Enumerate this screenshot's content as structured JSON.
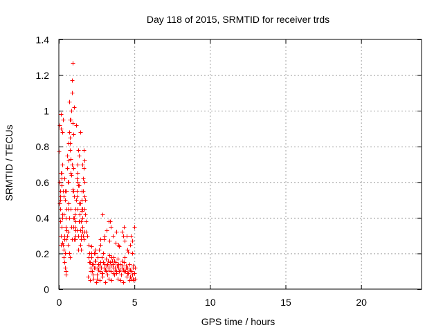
{
  "chart_data": {
    "type": "scatter",
    "title": "Day 118 of 2015, SRMTID for receiver trds",
    "xlabel": "GPS time / hours",
    "ylabel": "SRMTID / TECUs",
    "xlim": [
      0,
      24
    ],
    "ylim": [
      0,
      1.4
    ],
    "xticks": [
      0,
      5,
      10,
      15,
      20
    ],
    "yticks": [
      0,
      0.2,
      0.4,
      0.6,
      0.8,
      1,
      1.2,
      1.4
    ],
    "xtick_labels": [
      "0",
      "5",
      "10",
      "15",
      "20"
    ],
    "ytick_labels": [
      "0",
      "0.2",
      "0.4",
      "0.6",
      "0.8",
      "1",
      "1.2",
      "1.4"
    ],
    "grid": true,
    "marker": "+",
    "color": "#ff0000",
    "series": [
      {
        "name": "SRMTID",
        "x": [
          0.02,
          0.05,
          0.08,
          0.1,
          0.12,
          0.15,
          0.18,
          0.2,
          0.22,
          0.25,
          0.28,
          0.3,
          0.32,
          0.35,
          0.38,
          0.4,
          0.42,
          0.45,
          0.48,
          0.5,
          0.52,
          0.55,
          0.58,
          0.6,
          0.62,
          0.65,
          0.68,
          0.7,
          0.72,
          0.75,
          0.78,
          0.8,
          0.82,
          0.85,
          0.88,
          0.9,
          0.92,
          0.95,
          0.98,
          1.0,
          1.02,
          1.05,
          1.08,
          1.1,
          1.12,
          1.15,
          1.18,
          1.2,
          1.22,
          1.25,
          1.28,
          1.3,
          1.32,
          1.35,
          1.38,
          1.4,
          1.42,
          1.45,
          1.48,
          1.5,
          1.52,
          1.55,
          1.58,
          1.6,
          1.62,
          1.65,
          1.68,
          1.7,
          1.72,
          1.75,
          1.78,
          1.8,
          0.05,
          0.1,
          0.15,
          0.2,
          0.25,
          0.3,
          0.35,
          0.4,
          0.45,
          0.5,
          0.55,
          0.6,
          0.65,
          0.7,
          0.75,
          0.8,
          0.85,
          0.9,
          0.95,
          1.0,
          1.05,
          1.1,
          1.15,
          1.2,
          1.25,
          1.3,
          1.35,
          1.4,
          1.45,
          1.5,
          1.55,
          1.6,
          1.65,
          1.7,
          0.08,
          0.18,
          0.28,
          0.38,
          0.48,
          0.58,
          0.68,
          0.78,
          0.88,
          0.98,
          1.08,
          1.18,
          1.28,
          1.38,
          1.48,
          1.58,
          1.68,
          0.12,
          0.24,
          0.36,
          0.48,
          0.6,
          0.72,
          0.84,
          0.96,
          1.08,
          1.2,
          1.32,
          1.44,
          1.56,
          1.68,
          1.9,
          1.95,
          2.0,
          2.05,
          2.1,
          2.15,
          2.2,
          2.25,
          2.3,
          2.35,
          2.4,
          2.45,
          2.5,
          2.55,
          2.6,
          2.65,
          2.7,
          2.75,
          2.8,
          2.85,
          2.9,
          2.95,
          3.0,
          3.05,
          3.1,
          3.15,
          3.2,
          3.25,
          3.3,
          3.35,
          3.4,
          3.45,
          3.5,
          3.55,
          3.6,
          3.65,
          3.7,
          3.75,
          3.8,
          3.85,
          3.9,
          3.95,
          4.0,
          4.05,
          4.1,
          4.15,
          4.2,
          4.25,
          4.3,
          4.35,
          4.4,
          4.45,
          4.5,
          4.55,
          4.6,
          4.65,
          4.7,
          4.75,
          4.8,
          4.85,
          4.9,
          4.95,
          5.0,
          5.05,
          1.92,
          2.02,
          2.12,
          2.22,
          2.32,
          2.42,
          2.52,
          2.62,
          2.72,
          2.82,
          2.92,
          3.02,
          3.12,
          3.22,
          3.32,
          3.42,
          3.52,
          3.62,
          3.72,
          3.82,
          3.92,
          4.02,
          4.12,
          4.22,
          4.32,
          4.42,
          4.52,
          4.62,
          4.72,
          4.82,
          4.92,
          5.02,
          1.97,
          2.17,
          2.37,
          2.57,
          2.77,
          2.97,
          3.17,
          3.37,
          3.57,
          3.77,
          3.97,
          4.17,
          4.37,
          4.57,
          4.77,
          4.97,
          2.08,
          2.28,
          2.48,
          2.68,
          2.88,
          3.08,
          3.28,
          3.48,
          3.68,
          3.88,
          4.08,
          4.28,
          4.48,
          4.68,
          4.88,
          2.14,
          2.44,
          2.74,
          3.04,
          3.34,
          3.64,
          3.94,
          4.24,
          4.54,
          4.84,
          2.9,
          3.3,
          3.45,
          3.8,
          4.3,
          4.5,
          4.7,
          4.85,
          0.03,
          0.07,
          0.13,
          0.17,
          0.23,
          0.27,
          0.33,
          0.43,
          0.53,
          0.63,
          0.73,
          0.83,
          0.93,
          1.03,
          1.13,
          1.23,
          1.33,
          1.43,
          1.53,
          1.63
        ],
        "y": [
          0.77,
          0.6,
          0.45,
          0.52,
          0.98,
          0.9,
          0.35,
          0.58,
          0.26,
          0.7,
          0.55,
          0.42,
          0.18,
          0.3,
          0.62,
          0.2,
          0.12,
          0.28,
          0.4,
          0.55,
          0.33,
          0.75,
          0.45,
          0.6,
          0.48,
          0.82,
          0.88,
          1.05,
          0.95,
          0.78,
          0.65,
          0.73,
          1.0,
          1.17,
          1.1,
          1.27,
          0.93,
          0.87,
          0.68,
          0.52,
          0.4,
          0.35,
          0.3,
          0.45,
          0.28,
          0.5,
          0.62,
          0.55,
          0.7,
          0.65,
          0.78,
          0.58,
          0.48,
          0.38,
          0.42,
          0.33,
          0.25,
          0.3,
          0.22,
          0.5,
          0.45,
          0.4,
          0.35,
          0.55,
          0.62,
          0.68,
          0.72,
          0.6,
          0.5,
          0.42,
          0.38,
          0.32,
          0.48,
          0.55,
          0.3,
          0.65,
          0.4,
          0.22,
          0.28,
          0.5,
          0.35,
          0.45,
          0.3,
          0.25,
          0.6,
          0.4,
          0.85,
          0.95,
          0.7,
          0.55,
          0.35,
          0.28,
          0.42,
          0.38,
          0.5,
          0.33,
          0.45,
          0.3,
          0.58,
          0.25,
          0.38,
          0.44,
          0.32,
          0.3,
          0.28,
          0.52,
          0.38,
          0.62,
          0.25,
          0.15,
          0.1,
          0.32,
          0.2,
          0.45,
          0.28,
          0.4,
          0.33,
          0.52,
          0.22,
          0.38,
          0.28,
          0.45,
          0.32,
          0.25,
          0.42,
          0.28,
          0.08,
          0.45,
          0.18,
          0.35,
          0.55,
          0.3,
          0.62,
          0.75,
          0.88,
          0.7,
          0.45,
          0.3,
          0.25,
          0.2,
          0.15,
          0.12,
          0.18,
          0.1,
          0.08,
          0.14,
          0.2,
          0.16,
          0.12,
          0.06,
          0.18,
          0.14,
          0.22,
          0.1,
          0.15,
          0.12,
          0.18,
          0.09,
          0.2,
          0.14,
          0.11,
          0.17,
          0.13,
          0.08,
          0.16,
          0.12,
          0.19,
          0.15,
          0.1,
          0.18,
          0.14,
          0.12,
          0.16,
          0.11,
          0.15,
          0.09,
          0.13,
          0.17,
          0.12,
          0.1,
          0.14,
          0.08,
          0.16,
          0.12,
          0.11,
          0.15,
          0.18,
          0.1,
          0.13,
          0.07,
          0.12,
          0.09,
          0.14,
          0.11,
          0.06,
          0.1,
          0.08,
          0.13,
          0.05,
          0.09,
          0.12,
          0.07,
          0.15,
          0.1,
          0.14,
          0.12,
          0.16,
          0.08,
          0.11,
          0.13,
          0.09,
          0.15,
          0.12,
          0.1,
          0.14,
          0.11,
          0.13,
          0.16,
          0.09,
          0.12,
          0.1,
          0.14,
          0.11,
          0.08,
          0.13,
          0.1,
          0.12,
          0.09,
          0.11,
          0.07,
          0.1,
          0.12,
          0.06,
          0.18,
          0.2,
          0.22,
          0.12,
          0.25,
          0.28,
          0.33,
          0.38,
          0.3,
          0.26,
          0.24,
          0.32,
          0.27,
          0.21,
          0.3,
          0.35,
          0.05,
          0.06,
          0.04,
          0.05,
          0.07,
          0.04,
          0.06,
          0.05,
          0.08,
          0.06,
          0.05,
          0.04,
          0.07,
          0.05,
          0.06,
          0.24,
          0.2,
          0.28,
          0.3,
          0.27,
          0.18,
          0.25,
          0.3,
          0.22,
          0.2,
          0.42,
          0.38,
          0.35,
          0.32,
          0.35,
          0.3,
          0.25,
          0.27,
          0.92,
          0.5,
          0.65,
          0.62,
          0.88,
          0.95,
          0.52,
          0.55,
          0.68,
          0.72,
          0.82,
          0.64,
          0.56,
          1.02,
          0.92,
          0.6,
          0.58,
          0.48,
          0.55,
          0.78
        ]
      }
    ]
  }
}
